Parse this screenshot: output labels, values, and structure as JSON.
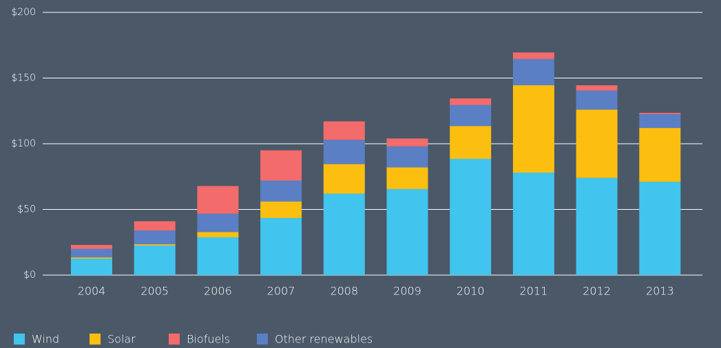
{
  "chart_data": {
    "type": "stacked_bar",
    "categories": [
      "2004",
      "2005",
      "2006",
      "2007",
      "2008",
      "2009",
      "2010",
      "2011",
      "2012",
      "2013"
    ],
    "series": [
      {
        "name": "Wind",
        "color": "#41c4ee",
        "values": [
          12.5,
          22.5,
          28.8,
          43.5,
          62,
          65.5,
          88.5,
          78,
          74,
          71
        ]
      },
      {
        "name": "Solar",
        "color": "#fcbf10",
        "values": [
          1,
          1,
          4,
          12.5,
          22.5,
          16.5,
          25,
          66.5,
          52,
          41
        ]
      },
      {
        "name": "Biofuels",
        "color": "#f46b6b",
        "values": [
          3,
          7,
          21,
          23,
          14,
          6,
          5,
          5,
          4,
          1
        ]
      },
      {
        "name": "Other renewables",
        "color": "#5b7fc4",
        "values": [
          6.5,
          10.5,
          14,
          16,
          18.5,
          16,
          16,
          20,
          14.5,
          10.5
        ]
      }
    ],
    "ylim": [
      0,
      200
    ],
    "yticks": [
      {
        "value": 0,
        "label": "$0"
      },
      {
        "value": 50,
        "label": "$50"
      },
      {
        "value": 100,
        "label": "$100"
      },
      {
        "value": 150,
        "label": "$150"
      },
      {
        "value": 200,
        "label": "$200"
      }
    ],
    "grid": true
  }
}
